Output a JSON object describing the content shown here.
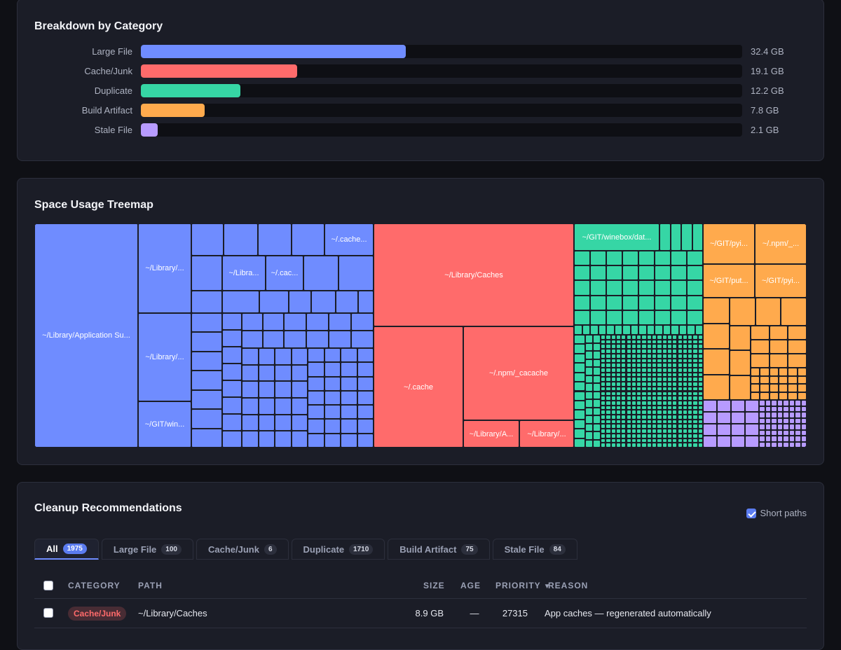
{
  "colors": {
    "large_file": "#6f8cff",
    "cache_junk": "#ff6b6b",
    "duplicate": "#36d6a5",
    "build_artifact": "#ffaa4d",
    "stale_file": "#b79bff"
  },
  "breakdown": {
    "title": "Breakdown by Category",
    "rows": [
      {
        "label": "Large File",
        "value": "32.4 GB",
        "fraction": 0.44,
        "color": "#6f8cff"
      },
      {
        "label": "Cache/Junk",
        "value": "19.1 GB",
        "fraction": 0.26,
        "color": "#ff6b6b"
      },
      {
        "label": "Duplicate",
        "value": "12.2 GB",
        "fraction": 0.165,
        "color": "#36d6a5"
      },
      {
        "label": "Build Artifact",
        "value": "7.8 GB",
        "fraction": 0.106,
        "color": "#ffaa4d"
      },
      {
        "label": "Stale File",
        "value": "2.1 GB",
        "fraction": 0.028,
        "color": "#b79bff"
      }
    ]
  },
  "treemap": {
    "title": "Space Usage Treemap",
    "labels": {
      "large_1": "~/Library/Application Su...",
      "large_2": "~/Library/...",
      "large_3": "~/Library/...",
      "large_4": "~/GIT/win...",
      "large_5": "~/.cache...",
      "large_6": "~/Libra...",
      "large_7": "~/.cac...",
      "cache_1": "~/Library/Caches",
      "cache_2": "~/.cache",
      "cache_3": "~/.npm/_cacache",
      "cache_4": "~/Library/A...",
      "cache_5": "~/Library/...",
      "dup_1": "~/GIT/winebox/dat...",
      "build_1": "~/GIT/pyi...",
      "build_2": "~/.npm/_...",
      "build_3": "~/GIT/put...",
      "build_4": "~/GIT/pyi..."
    }
  },
  "recommendations": {
    "title": "Cleanup Recommendations",
    "short_paths_label": "Short paths",
    "short_paths_checked": true,
    "tabs": [
      {
        "label": "All",
        "count": "1975",
        "active": true
      },
      {
        "label": "Large File",
        "count": "100",
        "active": false
      },
      {
        "label": "Cache/Junk",
        "count": "6",
        "active": false
      },
      {
        "label": "Duplicate",
        "count": "1710",
        "active": false
      },
      {
        "label": "Build Artifact",
        "count": "75",
        "active": false
      },
      {
        "label": "Stale File",
        "count": "84",
        "active": false
      }
    ],
    "columns": {
      "category": "CATEGORY",
      "path": "PATH",
      "size": "SIZE",
      "age": "AGE",
      "priority": "PRIORITY",
      "reason": "REASON"
    },
    "sort_indicator": "▼",
    "rows": [
      {
        "category": "Cache/Junk",
        "category_color": "#ff6b6b",
        "path": "~/Library/Caches",
        "size": "8.9 GB",
        "age": "—",
        "priority": "27315",
        "reason": "App caches — regenerated automatically"
      }
    ]
  }
}
